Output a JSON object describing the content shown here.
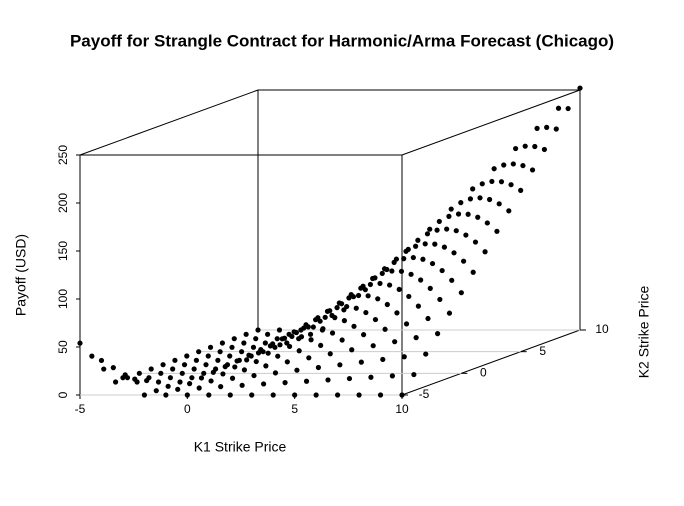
{
  "chart_data": {
    "type": "scatter3d",
    "title": "Payoff for Strangle Contract for Harmonic/Arma Forecast (Chicago)",
    "x_label": "K1 Strike Price",
    "y_label": "K2 Strike Price",
    "z_label": "Payoff (USD)",
    "color": "#000000",
    "xlim": [
      -5,
      10
    ],
    "ylim": [
      -5,
      10
    ],
    "zlim": [
      0,
      250
    ],
    "xticks": [
      -5,
      0,
      5,
      10
    ],
    "yticks": [
      -5,
      0,
      5,
      10
    ],
    "zticks": [
      0,
      50,
      100,
      150,
      200,
      250
    ],
    "x": [
      -5,
      -4,
      -3,
      -2,
      -1,
      0,
      1,
      2,
      3,
      4,
      5,
      6,
      7,
      8,
      9,
      10
    ],
    "y": [
      -5,
      -4,
      -3,
      -2,
      -1,
      0,
      1,
      2,
      3,
      4,
      5,
      6,
      7,
      8,
      9,
      10
    ],
    "z": [
      [
        54,
        36,
        18,
        0,
        0,
        0,
        0,
        0,
        0,
        0,
        0,
        0,
        0,
        0,
        0,
        0
      ],
      [
        36,
        24,
        12,
        0,
        1.4,
        2.8,
        4.2,
        5.6,
        7,
        8.4,
        9.8,
        11.2,
        12.6,
        14,
        15.4,
        16.8
      ],
      [
        18,
        12,
        6,
        0,
        2.8,
        5.6,
        8.4,
        11.2,
        14,
        16.8,
        19.6,
        22.4,
        25.2,
        28,
        30.8,
        33.6
      ],
      [
        0,
        0,
        0,
        0,
        4.2,
        8.4,
        12.6,
        16.8,
        21,
        25.2,
        29.4,
        33.6,
        37.8,
        42,
        46.2,
        50.4
      ],
      [
        0,
        0,
        0,
        0,
        5.6,
        11.2,
        16.8,
        22.4,
        28,
        33.6,
        39.2,
        44.8,
        50.4,
        56,
        61.6,
        67.2
      ],
      [
        0,
        0,
        0,
        0,
        7,
        14,
        21,
        28,
        35,
        42,
        49,
        56,
        63,
        70,
        77,
        84
      ],
      [
        0,
        0,
        0,
        0,
        8.4,
        16.8,
        25.2,
        33.6,
        42,
        50.4,
        58.8,
        67.2,
        75.6,
        84,
        92.4,
        100.8
      ],
      [
        0,
        0,
        0,
        0,
        9.8,
        19.6,
        29.4,
        39.2,
        49,
        58.8,
        68.6,
        78.4,
        88.2,
        98,
        107.8,
        117.6
      ],
      [
        0,
        0,
        0,
        0,
        11.2,
        22.4,
        33.6,
        44.8,
        56,
        67.2,
        78.4,
        89.6,
        100.8,
        112,
        123.2,
        134.4
      ],
      [
        0,
        0,
        0,
        0,
        12.6,
        25.2,
        37.8,
        50.4,
        63,
        75.6,
        88.2,
        100.8,
        113.4,
        126,
        138.6,
        151.2
      ],
      [
        0,
        0,
        0,
        0,
        14,
        28,
        42,
        56,
        70,
        84,
        98,
        112,
        126,
        140,
        154,
        168
      ],
      [
        0,
        0,
        0,
        0,
        15.4,
        30.8,
        46.2,
        61.6,
        77,
        92.4,
        107.8,
        123.2,
        138.6,
        154,
        169.4,
        184.8
      ],
      [
        0,
        0,
        0,
        0,
        16.8,
        33.6,
        50.4,
        67.2,
        84,
        100.8,
        117.6,
        134.4,
        151.2,
        168,
        184.8,
        201.6
      ],
      [
        0,
        0,
        0,
        0,
        18.2,
        36.4,
        54.6,
        72.8,
        91,
        109.2,
        127.4,
        145.6,
        163.8,
        182,
        200.2,
        218.4
      ],
      [
        0,
        0,
        0,
        0,
        19.6,
        39.2,
        58.8,
        78.4,
        98,
        117.6,
        137.2,
        156.8,
        176.4,
        196,
        215.6,
        235.2
      ],
      [
        0,
        0,
        0,
        0,
        21,
        42,
        63,
        84,
        105,
        126,
        147,
        168,
        189,
        210,
        231,
        252
      ]
    ]
  }
}
